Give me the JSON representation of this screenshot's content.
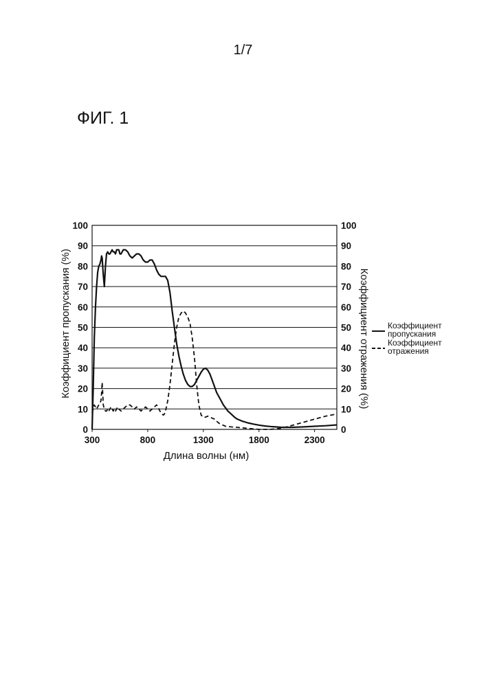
{
  "page": {
    "number": "1/7",
    "figure_label": "ФИГ. 1"
  },
  "chart_data": {
    "type": "line",
    "xlabel": "Длина волны (нм)",
    "ylabel_left": "Коэффициент пропускания (%)",
    "ylabel_right": "Коэффициент отражения (%)",
    "xlim": [
      300,
      2500
    ],
    "ylim": [
      0,
      100
    ],
    "x_ticks": [
      "300",
      "800",
      "1300",
      "1800",
      "2300"
    ],
    "y_ticks": [
      "0",
      "10",
      "20",
      "30",
      "40",
      "50",
      "60",
      "70",
      "80",
      "90",
      "100"
    ],
    "grid": "horizontal",
    "legend_position": "right",
    "series": [
      {
        "name_lines": [
          "Коэффициент",
          "пропускания"
        ],
        "style": "solid",
        "color": "#111111",
        "points": [
          [
            300,
            0
          ],
          [
            310,
            20
          ],
          [
            320,
            45
          ],
          [
            330,
            60
          ],
          [
            340,
            70
          ],
          [
            350,
            77
          ],
          [
            360,
            80
          ],
          [
            370,
            81
          ],
          [
            380,
            83
          ],
          [
            385,
            85
          ],
          [
            390,
            84
          ],
          [
            400,
            76
          ],
          [
            410,
            70
          ],
          [
            420,
            80
          ],
          [
            430,
            86
          ],
          [
            440,
            87
          ],
          [
            450,
            86
          ],
          [
            460,
            86
          ],
          [
            470,
            87
          ],
          [
            480,
            88
          ],
          [
            490,
            87
          ],
          [
            500,
            87
          ],
          [
            510,
            86
          ],
          [
            520,
            88
          ],
          [
            530,
            88
          ],
          [
            540,
            88
          ],
          [
            550,
            86
          ],
          [
            560,
            86
          ],
          [
            570,
            87
          ],
          [
            580,
            88
          ],
          [
            600,
            88
          ],
          [
            620,
            87
          ],
          [
            640,
            85
          ],
          [
            660,
            84
          ],
          [
            680,
            85
          ],
          [
            700,
            86
          ],
          [
            720,
            86
          ],
          [
            740,
            85
          ],
          [
            760,
            83
          ],
          [
            780,
            82
          ],
          [
            800,
            82
          ],
          [
            820,
            83
          ],
          [
            840,
            83
          ],
          [
            860,
            81
          ],
          [
            880,
            78
          ],
          [
            900,
            76
          ],
          [
            920,
            75
          ],
          [
            940,
            75
          ],
          [
            960,
            75
          ],
          [
            980,
            73
          ],
          [
            1000,
            67
          ],
          [
            1020,
            58
          ],
          [
            1040,
            50
          ],
          [
            1060,
            42
          ],
          [
            1080,
            36
          ],
          [
            1100,
            31
          ],
          [
            1120,
            27
          ],
          [
            1140,
            24
          ],
          [
            1160,
            22
          ],
          [
            1180,
            21
          ],
          [
            1200,
            21
          ],
          [
            1220,
            22
          ],
          [
            1240,
            24
          ],
          [
            1260,
            26
          ],
          [
            1280,
            28
          ],
          [
            1300,
            29.5
          ],
          [
            1320,
            30
          ],
          [
            1340,
            29
          ],
          [
            1360,
            27
          ],
          [
            1380,
            24
          ],
          [
            1400,
            21
          ],
          [
            1420,
            18
          ],
          [
            1440,
            16
          ],
          [
            1460,
            14
          ],
          [
            1480,
            12
          ],
          [
            1500,
            10.5
          ],
          [
            1520,
            9
          ],
          [
            1540,
            8
          ],
          [
            1560,
            7
          ],
          [
            1580,
            6
          ],
          [
            1600,
            5.2
          ],
          [
            1650,
            4
          ],
          [
            1700,
            3.2
          ],
          [
            1750,
            2.6
          ],
          [
            1800,
            2.1
          ],
          [
            1850,
            1.7
          ],
          [
            1900,
            1.4
          ],
          [
            1950,
            1.2
          ],
          [
            2000,
            1
          ],
          [
            2100,
            1
          ],
          [
            2200,
            1.2
          ],
          [
            2300,
            1.5
          ],
          [
            2400,
            1.8
          ],
          [
            2500,
            2.2
          ]
        ]
      },
      {
        "name_lines": [
          "Коэффициент",
          "отражения"
        ],
        "style": "dashed",
        "color": "#111111",
        "points": [
          [
            300,
            8
          ],
          [
            310,
            10
          ],
          [
            320,
            12
          ],
          [
            330,
            11
          ],
          [
            340,
            10
          ],
          [
            350,
            11
          ],
          [
            360,
            12
          ],
          [
            370,
            13
          ],
          [
            380,
            14
          ],
          [
            385,
            18
          ],
          [
            390,
            23
          ],
          [
            395,
            18
          ],
          [
            400,
            12
          ],
          [
            410,
            10
          ],
          [
            420,
            9
          ],
          [
            430,
            9
          ],
          [
            440,
            10
          ],
          [
            450,
            9
          ],
          [
            460,
            10
          ],
          [
            470,
            11
          ],
          [
            480,
            10
          ],
          [
            490,
            9
          ],
          [
            500,
            10
          ],
          [
            510,
            9
          ],
          [
            520,
            10
          ],
          [
            530,
            11
          ],
          [
            540,
            10
          ],
          [
            560,
            9
          ],
          [
            580,
            10
          ],
          [
            600,
            11
          ],
          [
            620,
            12
          ],
          [
            640,
            12
          ],
          [
            660,
            11
          ],
          [
            680,
            10
          ],
          [
            700,
            11
          ],
          [
            720,
            10
          ],
          [
            740,
            9
          ],
          [
            760,
            10
          ],
          [
            780,
            11
          ],
          [
            800,
            10
          ],
          [
            820,
            9
          ],
          [
            840,
            10
          ],
          [
            860,
            11
          ],
          [
            880,
            12
          ],
          [
            900,
            10
          ],
          [
            920,
            8
          ],
          [
            940,
            7
          ],
          [
            950,
            7.5
          ],
          [
            960,
            9
          ],
          [
            980,
            14
          ],
          [
            1000,
            22
          ],
          [
            1020,
            32
          ],
          [
            1040,
            42
          ],
          [
            1060,
            50
          ],
          [
            1080,
            55
          ],
          [
            1100,
            57
          ],
          [
            1120,
            58
          ],
          [
            1140,
            57
          ],
          [
            1160,
            55
          ],
          [
            1180,
            52
          ],
          [
            1200,
            45
          ],
          [
            1220,
            35
          ],
          [
            1240,
            22
          ],
          [
            1260,
            12
          ],
          [
            1280,
            7
          ],
          [
            1300,
            6
          ],
          [
            1320,
            6
          ],
          [
            1340,
            6.5
          ],
          [
            1360,
            6
          ],
          [
            1380,
            5.5
          ],
          [
            1400,
            5
          ],
          [
            1420,
            4
          ],
          [
            1440,
            3
          ],
          [
            1460,
            2.5
          ],
          [
            1480,
            2
          ],
          [
            1500,
            1.5
          ],
          [
            1550,
            1.2
          ],
          [
            1600,
            1
          ],
          [
            1700,
            0.5
          ],
          [
            1800,
            0
          ],
          [
            1900,
            0
          ],
          [
            2000,
            0.5
          ],
          [
            2100,
            2
          ],
          [
            2200,
            3.5
          ],
          [
            2300,
            5
          ],
          [
            2400,
            6.5
          ],
          [
            2500,
            7.5
          ]
        ]
      }
    ]
  }
}
